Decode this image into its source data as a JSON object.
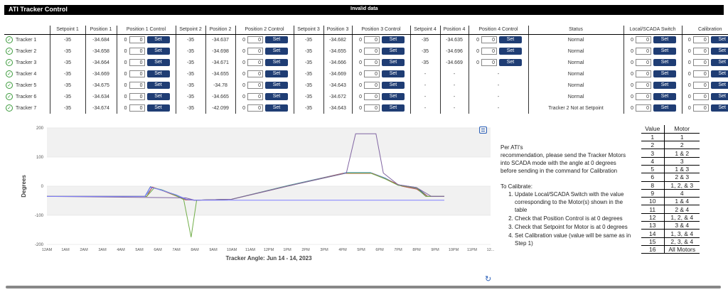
{
  "app": {
    "title": "ATI Tracker Control",
    "status_banner": "Invalid data"
  },
  "columns": [
    "",
    "Setpoint 1",
    "Position 1",
    "Position 1 Control",
    "Setpoint 2",
    "Position 2",
    "Position 2 Control",
    "Setpoint 3",
    "Position 3",
    "Position 3 Control",
    "Setpoint 4",
    "Position 4",
    "Position 4 Control",
    "Status",
    "Local/SCADA Switch",
    "Calibration"
  ],
  "control_defaults": {
    "prefix": "0",
    "value": "0",
    "button": "Set"
  },
  "rows": [
    {
      "name": "Tracker 1",
      "sp1": "-35",
      "p1": "-34.684",
      "sp2": "-35",
      "p2": "-34.637",
      "sp3": "-35",
      "p3": "-34.682",
      "sp4": "-35",
      "p4": "-34.635",
      "status": "Normal"
    },
    {
      "name": "Tracker 2",
      "sp1": "-35",
      "p1": "-34.658",
      "sp2": "-35",
      "p2": "-34.698",
      "sp3": "-35",
      "p3": "-34.655",
      "sp4": "-35",
      "p4": "-34.696",
      "status": "Normal"
    },
    {
      "name": "Tracker 3",
      "sp1": "-35",
      "p1": "-34.664",
      "sp2": "-35",
      "p2": "-34.671",
      "sp3": "-35",
      "p3": "-34.666",
      "sp4": "-35",
      "p4": "-34.669",
      "status": "Normal"
    },
    {
      "name": "Tracker 4",
      "sp1": "-35",
      "p1": "-34.669",
      "sp2": "-35",
      "p2": "-34.655",
      "sp3": "-35",
      "p3": "-34.669",
      "sp4": "-",
      "p4": "-",
      "status": "Normal"
    },
    {
      "name": "Tracker 5",
      "sp1": "-35",
      "p1": "-34.675",
      "sp2": "-35",
      "p2": "-34.78",
      "sp3": "-35",
      "p3": "-34.643",
      "sp4": "-",
      "p4": "-",
      "status": "Normal"
    },
    {
      "name": "Tracker 6",
      "sp1": "-35",
      "p1": "-34.634",
      "sp2": "-35",
      "p2": "-34.665",
      "sp3": "-35",
      "p3": "-34.672",
      "sp4": "-",
      "p4": "-",
      "status": "Normal"
    },
    {
      "name": "Tracker 7",
      "sp1": "-35",
      "p1": "-34.674",
      "sp2": "-35",
      "p2": "-42.099",
      "sp3": "-35",
      "p3": "-34.643",
      "sp4": "-",
      "p4": "-",
      "status": "Tracker 2 Not at Setpoint"
    }
  ],
  "chart_data": {
    "type": "line",
    "title": "",
    "xlabel": "Tracker Angle: Jun 14 - 14, 2023",
    "ylabel": "Degrees",
    "ylim": [
      -200,
      200
    ],
    "yticks": [
      "200",
      "100",
      "0",
      "-100",
      "-200"
    ],
    "xticks": [
      "12AM",
      "1AM",
      "2AM",
      "3AM",
      "4AM",
      "5AM",
      "6AM",
      "7AM",
      "8AM",
      "9AM",
      "10AM",
      "11AM",
      "12PM",
      "1PM",
      "2PM",
      "3PM",
      "4PM",
      "5PM",
      "6PM",
      "7PM",
      "8PM",
      "9PM",
      "10PM",
      "11PM",
      "12..."
    ],
    "xlim": [
      0,
      24
    ],
    "series": [
      {
        "color": "#2b5d8a",
        "points": [
          [
            0,
            -35
          ],
          [
            5.3,
            -35
          ],
          [
            5.6,
            -2
          ],
          [
            6,
            -10
          ],
          [
            7,
            -30
          ],
          [
            7.5,
            -45
          ],
          [
            8,
            -48
          ],
          [
            10,
            -45
          ],
          [
            13,
            0
          ],
          [
            16.2,
            45
          ],
          [
            17.5,
            45
          ],
          [
            18.2,
            30
          ],
          [
            19,
            5
          ],
          [
            20,
            -5
          ],
          [
            20.6,
            -35
          ],
          [
            21.5,
            -35
          ]
        ]
      },
      {
        "color": "#5b9bd5",
        "points": [
          [
            0,
            -35
          ],
          [
            5.3,
            -35
          ],
          [
            5.7,
            -5
          ],
          [
            6.2,
            -12
          ],
          [
            7,
            -32
          ],
          [
            7.5,
            -46
          ],
          [
            8,
            -48
          ],
          [
            10,
            -45
          ],
          [
            13,
            2
          ],
          [
            16.2,
            47
          ],
          [
            17.5,
            47
          ],
          [
            18.3,
            28
          ],
          [
            19,
            4
          ],
          [
            20,
            -8
          ],
          [
            20.5,
            -35
          ],
          [
            21.5,
            -35
          ]
        ]
      },
      {
        "color": "#c0504d",
        "points": [
          [
            0,
            -35
          ],
          [
            5.4,
            -35
          ],
          [
            5.7,
            -3
          ],
          [
            6.2,
            -14
          ],
          [
            7,
            -34
          ],
          [
            7.5,
            -47
          ],
          [
            8,
            -48
          ],
          [
            10,
            -45
          ],
          [
            13,
            0
          ],
          [
            16,
            44
          ],
          [
            17.6,
            44
          ],
          [
            18.5,
            20
          ],
          [
            19.2,
            0
          ],
          [
            20,
            -10
          ],
          [
            20.6,
            -35
          ],
          [
            21.5,
            -35
          ]
        ]
      },
      {
        "color": "#70ad47",
        "points": [
          [
            0,
            -35
          ],
          [
            5.4,
            -35
          ],
          [
            5.8,
            -6
          ],
          [
            6.3,
            -15
          ],
          [
            7,
            -33
          ],
          [
            7.4,
            -46
          ],
          [
            7.8,
            -175
          ],
          [
            8.1,
            -48
          ],
          [
            10,
            -45
          ],
          [
            13,
            1
          ],
          [
            16.2,
            45
          ],
          [
            17.5,
            45
          ],
          [
            18.3,
            25
          ],
          [
            19,
            3
          ],
          [
            20,
            -6
          ],
          [
            20.5,
            -35
          ],
          [
            21.5,
            -35
          ]
        ]
      },
      {
        "color": "#8064a2",
        "points": [
          [
            0,
            -35
          ],
          [
            7.5,
            -40
          ],
          [
            8,
            -48
          ],
          [
            10,
            -45
          ],
          [
            13,
            0
          ],
          [
            16.2,
            45
          ],
          [
            16.7,
            180
          ],
          [
            17.8,
            180
          ],
          [
            18.2,
            45
          ],
          [
            19,
            5
          ],
          [
            20,
            -5
          ],
          [
            20.8,
            -35
          ],
          [
            21.5,
            -35
          ]
        ]
      },
      {
        "color": "#7f7fff",
        "points": [
          [
            0,
            -35
          ],
          [
            5.3,
            -35
          ],
          [
            5.6,
            -4
          ],
          [
            6,
            -10
          ],
          [
            7,
            -30
          ],
          [
            7.6,
            -46
          ],
          [
            8,
            -48
          ],
          [
            21.5,
            -48
          ]
        ]
      }
    ]
  },
  "instructions": {
    "p1": "Per ATI's",
    "p2": "recommendation, please send the Tracker Motors into SCADA mode with the angle at 0 degrees before sending in the command for Calibration",
    "p3": "To Calibrate:",
    "steps": [
      "Update Local/SCADA Switch with the value corresponding to the Motor(s) shown in the table",
      "Check that Position Control is at 0 degrees",
      "Check that Setpoint for Motor is at 0 degrees",
      "Set Calibration value (value will be same as in Step 1)"
    ]
  },
  "value_motor": {
    "headers": [
      "Value",
      "Motor"
    ],
    "rows": [
      [
        "1",
        "1"
      ],
      [
        "2",
        "2"
      ],
      [
        "3",
        "1 & 2"
      ],
      [
        "4",
        "3"
      ],
      [
        "5",
        "1 & 3"
      ],
      [
        "6",
        "2 & 3"
      ],
      [
        "8",
        "1, 2, & 3"
      ],
      [
        "9",
        "4"
      ],
      [
        "10",
        "1 & 4"
      ],
      [
        "11",
        "2 & 4"
      ],
      [
        "12",
        "1, 2, & 4"
      ],
      [
        "13",
        "3 & 4"
      ],
      [
        "14",
        "1, 3, & 4"
      ],
      [
        "15",
        "2, 3, & 4"
      ],
      [
        "16",
        "All Motors"
      ]
    ]
  },
  "icons": {
    "check": "check-circle-icon",
    "refresh": "refresh-icon",
    "export": "export-icon"
  }
}
